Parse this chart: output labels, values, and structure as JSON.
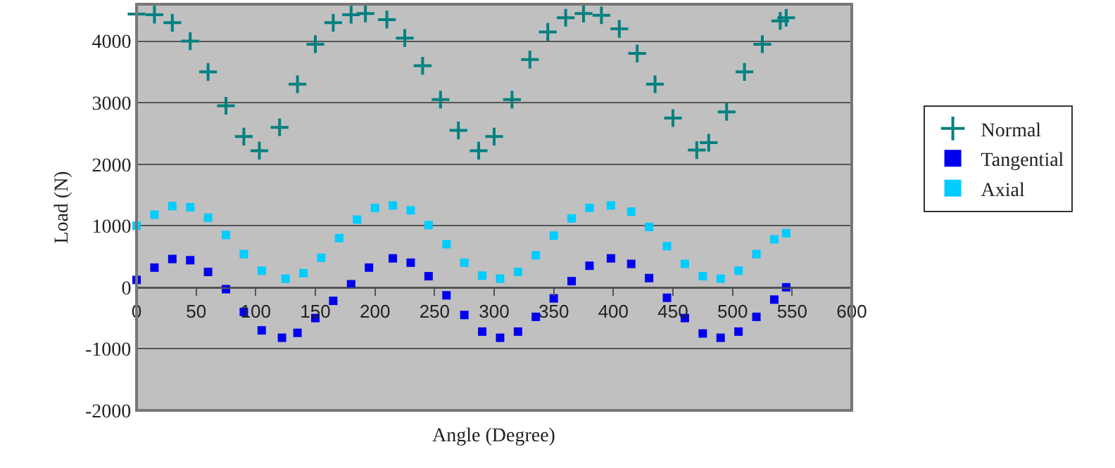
{
  "chart_data": {
    "type": "scatter",
    "xlabel": "Angle (Degree)",
    "ylabel": "Load (N)",
    "xlim": [
      0,
      600
    ],
    "xticks": [
      0,
      50,
      100,
      150,
      200,
      250,
      300,
      350,
      400,
      450,
      500,
      550,
      600
    ],
    "ylim": [
      -2000,
      4600
    ],
    "yticks": [
      -2000,
      -1000,
      0,
      1000,
      2000,
      3000,
      4000
    ],
    "grid": "y",
    "legend": "right",
    "series": [
      {
        "name": "Normal",
        "color": "#008080",
        "marker": "cross",
        "x": [
          0,
          15,
          30,
          45,
          60,
          75,
          90,
          103,
          120,
          135,
          150,
          165,
          180,
          192,
          210,
          225,
          240,
          255,
          270,
          287,
          300,
          315,
          330,
          345,
          360,
          375,
          390,
          405,
          420,
          435,
          450,
          470,
          480,
          495,
          510,
          525,
          540,
          545
        ],
        "values": [
          4440,
          4430,
          4300,
          4000,
          3500,
          2950,
          2450,
          2220,
          2600,
          3300,
          3950,
          4300,
          4430,
          4450,
          4350,
          4050,
          3600,
          3050,
          2550,
          2220,
          2450,
          3050,
          3700,
          4150,
          4380,
          4450,
          4420,
          4200,
          3800,
          3300,
          2750,
          2230,
          2350,
          2850,
          3500,
          3950,
          4330,
          4380
        ]
      },
      {
        "name": "Tangential",
        "color": "#0000ee",
        "marker": "square",
        "x": [
          0,
          15,
          30,
          45,
          60,
          75,
          90,
          105,
          122,
          135,
          150,
          165,
          180,
          195,
          215,
          230,
          245,
          260,
          275,
          290,
          305,
          320,
          335,
          350,
          365,
          380,
          398,
          415,
          430,
          445,
          460,
          475,
          490,
          505,
          520,
          535,
          545
        ],
        "values": [
          120,
          320,
          460,
          440,
          250,
          -30,
          -400,
          -700,
          -820,
          -740,
          -500,
          -220,
          50,
          320,
          470,
          400,
          180,
          -130,
          -450,
          -720,
          -820,
          -720,
          -480,
          -180,
          100,
          350,
          470,
          380,
          150,
          -170,
          -500,
          -750,
          -820,
          -720,
          -480,
          -200,
          0
        ]
      },
      {
        "name": "Axial",
        "color": "#00ccff",
        "marker": "square",
        "x": [
          0,
          15,
          30,
          45,
          60,
          75,
          90,
          105,
          125,
          140,
          155,
          170,
          185,
          200,
          215,
          230,
          245,
          260,
          275,
          290,
          305,
          320,
          335,
          350,
          365,
          380,
          398,
          415,
          430,
          445,
          460,
          475,
          490,
          505,
          520,
          535,
          545
        ],
        "values": [
          1000,
          1180,
          1320,
          1300,
          1130,
          850,
          540,
          270,
          140,
          230,
          480,
          800,
          1100,
          1290,
          1330,
          1250,
          1010,
          700,
          400,
          190,
          140,
          250,
          520,
          840,
          1120,
          1290,
          1330,
          1230,
          980,
          670,
          380,
          180,
          140,
          270,
          540,
          780,
          880
        ]
      }
    ]
  }
}
